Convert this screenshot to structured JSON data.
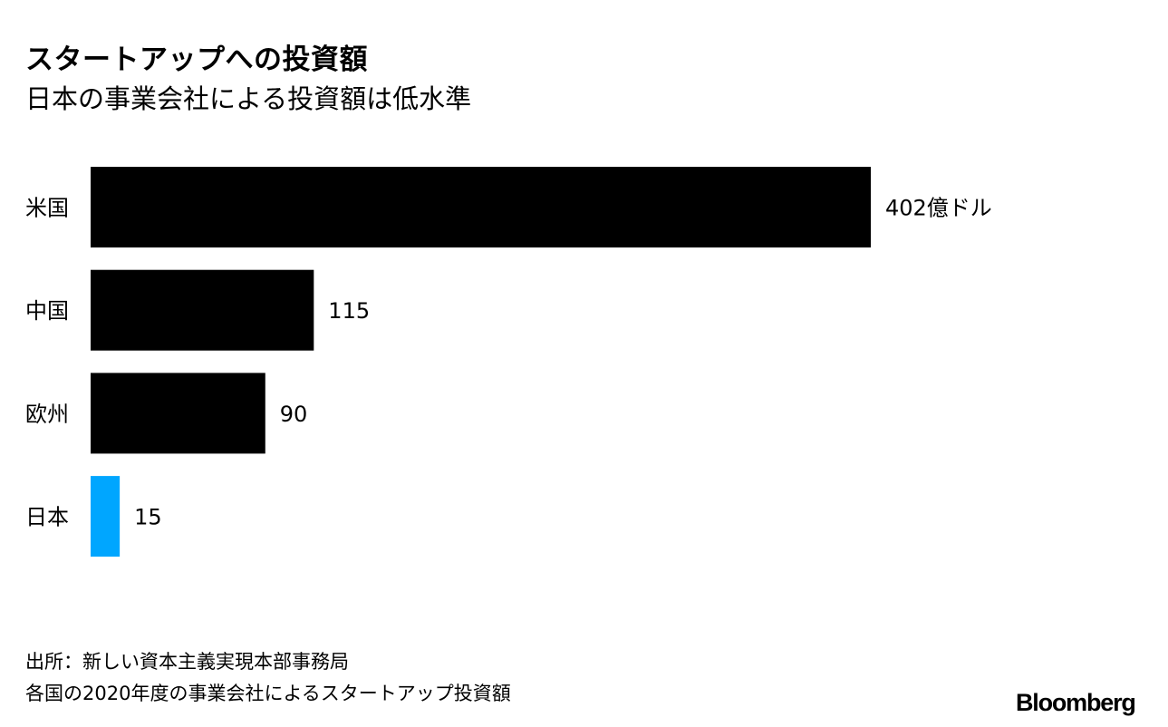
{
  "header": {
    "title": "スタートアップへの投資額",
    "subtitle": "日本の事業会社による投資額は低水準"
  },
  "chart_data": {
    "type": "bar",
    "orientation": "horizontal",
    "categories": [
      "米国",
      "中国",
      "欧州",
      "日本"
    ],
    "values": [
      402,
      115,
      90,
      15
    ],
    "value_labels": [
      "402億ドル",
      "115",
      "90",
      "15"
    ],
    "colors": [
      "#000000",
      "#000000",
      "#000000",
      "#00a6ff"
    ],
    "title": "スタートアップへの投資額",
    "subtitle": "日本の事業会社による投資額は低水準",
    "xlabel": "",
    "ylabel": "",
    "xlim": [
      0,
      402
    ],
    "grid": false,
    "legend": "none"
  },
  "footer": {
    "source": "出所：新しい資本主義実現本部事務局",
    "note": "各国の2020年度の事業会社によるスタートアップ投資額",
    "brand": "Bloomberg"
  }
}
